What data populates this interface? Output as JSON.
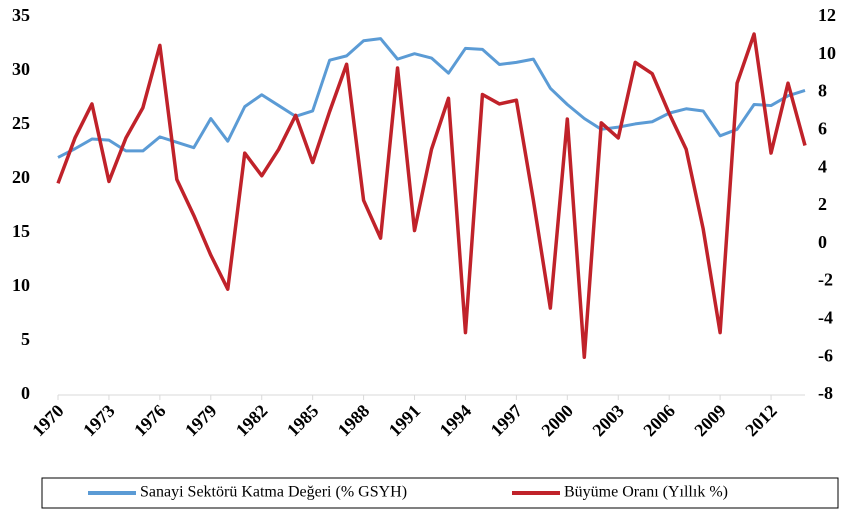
{
  "chart_data": {
    "type": "line",
    "x": [
      1970,
      1971,
      1972,
      1973,
      1974,
      1975,
      1976,
      1977,
      1978,
      1979,
      1980,
      1981,
      1982,
      1983,
      1984,
      1985,
      1986,
      1987,
      1988,
      1989,
      1990,
      1991,
      1992,
      1993,
      1994,
      1995,
      1996,
      1997,
      1998,
      1999,
      2000,
      2001,
      2002,
      2003,
      2004,
      2005,
      2006,
      2007,
      2008,
      2009,
      2010,
      2011,
      2012,
      2013,
      2014
    ],
    "series": [
      {
        "name": "Sanayi Sektörü Katma Değeri (% GSYH)",
        "color": "#5b9bd5",
        "values": [
          22.0,
          22.8,
          23.7,
          23.6,
          22.6,
          22.6,
          23.9,
          23.4,
          22.9,
          25.6,
          23.5,
          26.7,
          27.8,
          26.8,
          25.8,
          26.3,
          31.0,
          31.4,
          32.8,
          33.0,
          31.1,
          31.6,
          31.2,
          29.8,
          32.1,
          32.0,
          30.6,
          30.8,
          31.1,
          28.4,
          26.9,
          25.6,
          24.6,
          24.8,
          25.1,
          25.3,
          26.1,
          26.5,
          26.3,
          24.0,
          24.6,
          26.9,
          26.8,
          27.7,
          28.2
        ]
      },
      {
        "name": "Büyüme Oranı (Yıllık %)",
        "color": "#c0222a",
        "axis": "y2",
        "values": [
          3.2,
          5.6,
          7.4,
          3.3,
          5.6,
          7.2,
          10.5,
          3.4,
          1.5,
          -0.6,
          -2.4,
          4.8,
          3.6,
          5.0,
          6.8,
          4.3,
          7.0,
          9.5,
          2.3,
          0.3,
          9.3,
          0.7,
          5.0,
          7.7,
          -4.7,
          7.9,
          7.4,
          7.6,
          2.3,
          -3.4,
          6.6,
          -6.0,
          6.4,
          5.6,
          9.6,
          9.0,
          6.9,
          5.0,
          0.8,
          -4.7,
          8.5,
          11.1,
          4.8,
          8.5,
          5.2
        ]
      }
    ],
    "xlim": [
      1970,
      2014
    ],
    "xticks": [
      1970,
      1973,
      1976,
      1979,
      1982,
      1985,
      1988,
      1991,
      1994,
      1997,
      2000,
      2003,
      2006,
      2009,
      2012
    ],
    "ylim": [
      0,
      35
    ],
    "yticks": [
      0,
      5,
      10,
      15,
      20,
      25,
      30,
      35
    ],
    "y2lim": [
      -8,
      12
    ],
    "y2ticks": [
      -8,
      -6,
      -4,
      -2,
      0,
      2,
      4,
      6,
      8,
      10,
      12
    ],
    "legend": "bottom"
  }
}
